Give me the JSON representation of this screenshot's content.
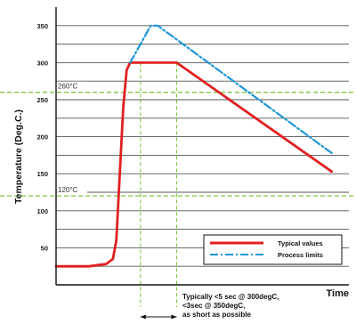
{
  "chart_data": {
    "type": "line",
    "xlabel": "Time",
    "ylabel": "Temperature (Deg.C.)",
    "ylim": [
      0,
      375
    ],
    "y_ticks": [
      50,
      100,
      150,
      200,
      250,
      300,
      350
    ],
    "grid": true,
    "legend_position": "bottom-right",
    "series": [
      {
        "name": "Typical values",
        "color": "#e02020",
        "style": "solid",
        "x": [
          0,
          38,
          58,
          66,
          70,
          74,
          78,
          82,
          86,
          90,
          94,
          98,
          140,
          320
        ],
        "y": [
          25,
          25,
          28,
          35,
          60,
          150,
          240,
          290,
          300,
          300,
          300,
          300,
          300,
          153
        ]
      },
      {
        "name": "Process limits",
        "color": "#1e96d8",
        "style": "dash-dot",
        "x": [
          86,
          110,
          118,
          320
        ],
        "y": [
          300,
          350,
          350,
          178
        ]
      }
    ],
    "reference_lines": [
      {
        "label": "260°C",
        "value": 260
      },
      {
        "label": "120°C",
        "value": 120
      }
    ],
    "vertical_markers_x": [
      98,
      140
    ],
    "annotation": "Typically <5 sec @ 300degC,\n<3sec @ 350degC,\nas short as possible"
  },
  "colors": {
    "axis": "#111111",
    "grid": "#555555",
    "reference": "#7dc83e"
  }
}
